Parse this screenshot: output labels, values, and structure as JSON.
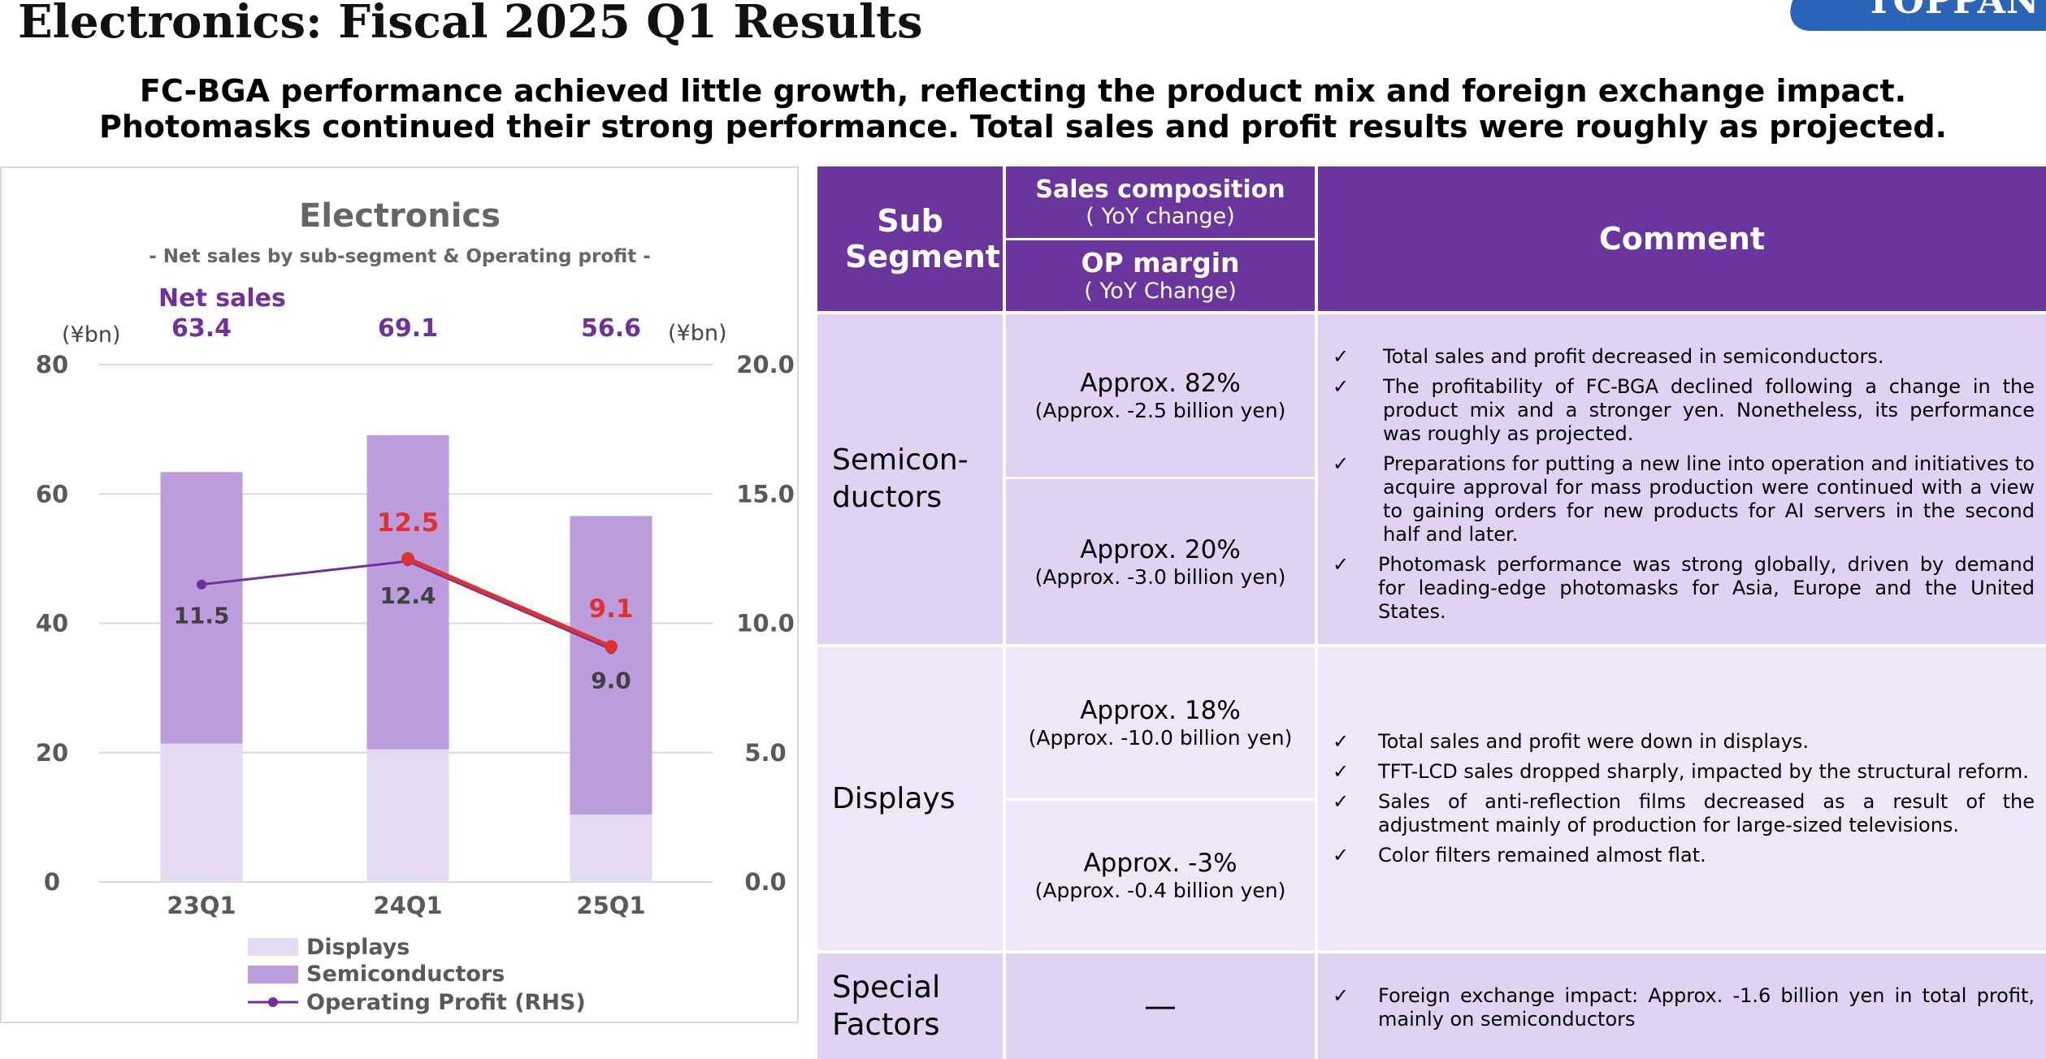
{
  "page": {
    "title": "Electronics: Fiscal 2025 Q1 Results",
    "logo_text": "TOPPAN",
    "headline_1": "FC-BGA performance achieved little growth, reflecting the product mix and foreign exchange impact.",
    "headline_2": "Photomasks continued their strong performance. Total sales and profit results were roughly as projected."
  },
  "chart_data": {
    "type": "bar",
    "stacked": true,
    "title": "Electronics",
    "subtitle": "- Net sales by sub-segment & Operating profit -",
    "net_sales_label": "Net sales",
    "net_sales_totals": [
      "63.4",
      "69.1",
      "56.6"
    ],
    "categories": [
      "23Q1",
      "24Q1",
      "25Q1"
    ],
    "left_axis_unit": "(¥bn)",
    "right_axis_unit": "(¥bn)",
    "ylim_left": [
      0,
      80
    ],
    "ylim_right": [
      0,
      20
    ],
    "yticks_left": [
      "0",
      "20",
      "40",
      "60",
      "80"
    ],
    "yticks_right": [
      "0.0",
      "5.0",
      "10.0",
      "15.0",
      "20.0"
    ],
    "grid": true,
    "legend_position": "bottom",
    "series": [
      {
        "name": "Displays",
        "type": "bar",
        "values": [
          21.4,
          20.5,
          10.4
        ],
        "color": "#e5daf2"
      },
      {
        "name": "Semiconductors",
        "type": "bar",
        "values": [
          42.0,
          48.6,
          46.2
        ],
        "color": "#bd9edc"
      },
      {
        "name": "Operating Profit (RHS)",
        "type": "line",
        "axis": "right",
        "values": [
          11.5,
          12.4,
          9.0
        ],
        "color": "#7030a0"
      }
    ],
    "highlight_line": {
      "values": [
        12.5,
        9.1
      ],
      "labels": [
        "12.5",
        "9.1"
      ],
      "color": "#e03030"
    },
    "op_labels": [
      "11.5",
      "12.4",
      "9.0"
    ]
  },
  "table": {
    "headers": {
      "sub_segment": "Sub Segment",
      "sales_comp": "Sales composition",
      "sales_comp_sub": "( YoY change)",
      "op_margin": "OP margin",
      "op_margin_sub": "( YoY Change)",
      "comment": "Comment"
    },
    "check": "✓",
    "rows": [
      {
        "name": "Semicon-\nductors",
        "sales_big": "Approx. 82%",
        "sales_small": "(Approx. -2.5 billion yen)",
        "op_big": "Approx. 20%",
        "op_small": "(Approx. -3.0 billion yen)",
        "comments": [
          "Total sales and profit decreased in semiconductors.",
          "The profitability of FC-BGA declined following a change in the product mix and a stronger yen. Nonetheless, its performance was roughly as projected.",
          "Preparations for putting a new line into operation and initiatives to acquire approval for mass production were continued with a view to gaining orders for new products for AI servers in the second half and later.",
          "Photomask performance was strong globally, driven by demand for leading-edge photomasks for Asia, Europe and the United States."
        ]
      },
      {
        "name": "Displays",
        "sales_big": "Approx. 18%",
        "sales_small": "(Approx. -10.0 billion yen)",
        "op_big": "Approx. -3%",
        "op_small": "(Approx. -0.4 billion yen)",
        "comments": [
          "Total sales and profit were down in displays.",
          "TFT-LCD sales dropped sharply, impacted by the structural reform.",
          "Sales of anti-reflection films decreased as a result of the adjustment mainly of production for large-sized televisions.",
          "Color filters remained almost flat."
        ]
      },
      {
        "name": "Special\nFactors",
        "value": "—",
        "comments": [
          "Foreign exchange impact: Approx. -1.6 billion yen in total profit, mainly on semiconductors"
        ]
      }
    ]
  }
}
